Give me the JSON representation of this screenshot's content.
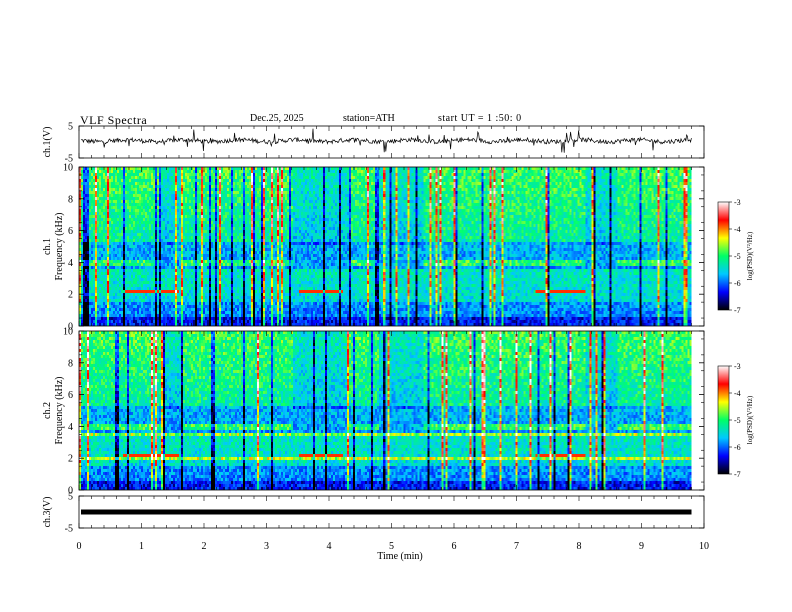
{
  "header": {
    "title": "VLF  Spectra",
    "date": "Dec.25, 2025",
    "station": "station=ATH",
    "start": "start  UT  =   1  :50: 0"
  },
  "chart_data": [
    {
      "type": "line",
      "ylabel": "ch.1(V)",
      "yticks": [
        "5",
        "-5"
      ],
      "ylim": [
        -5,
        5
      ],
      "xlim": [
        0,
        10
      ],
      "baseline": 0.4,
      "color": "#000000"
    },
    {
      "type": "heatmap",
      "ylabel": "ch.1\nFrequency  (kHz)",
      "ylabel_lines": [
        "ch.1",
        "Frequency  (kHz)"
      ],
      "yticks": [
        "0",
        "2",
        "4",
        "6",
        "8",
        "10"
      ],
      "ylim": [
        0,
        10
      ],
      "xlim": [
        0,
        10
      ],
      "data_end_min": 9.8,
      "colorbar": {
        "label": "log(PSD)(V²/Hz)",
        "ticks": [
          "-3",
          "-4",
          "-5",
          "-6",
          "-7"
        ],
        "range": [
          -7,
          -3
        ],
        "colors": [
          "#000000",
          "#0000ff",
          "#00c8ff",
          "#00ff66",
          "#ffff00",
          "#ff0000",
          "#ffffff"
        ]
      }
    },
    {
      "type": "heatmap",
      "ylabel": "ch.2\nFrequency  (kHz)",
      "ylabel_lines": [
        "ch.2",
        "Frequency  (kHz)"
      ],
      "yticks": [
        "0",
        "2",
        "4",
        "6",
        "8",
        "10"
      ],
      "ylim": [
        0,
        10
      ],
      "xlim": [
        0,
        10
      ],
      "data_end_min": 9.8,
      "colorbar": {
        "label": "log(PSD)(V²/Hz)",
        "ticks": [
          "-3",
          "-4",
          "-5",
          "-6",
          "-7"
        ],
        "range": [
          -7,
          -3
        ],
        "colors": [
          "#000000",
          "#0000ff",
          "#00c8ff",
          "#00ff66",
          "#ffff00",
          "#ff0000",
          "#ffffff"
        ]
      }
    },
    {
      "type": "line",
      "ylabel": "ch.3(V)",
      "yticks": [
        "5",
        "-5"
      ],
      "ylim": [
        -5,
        5
      ],
      "xlim": [
        0,
        10
      ],
      "baseline": 0,
      "color": "#000000"
    }
  ],
  "xaxis": {
    "label": "Time  (min)",
    "ticks": [
      "0",
      "1",
      "2",
      "3",
      "4",
      "5",
      "6",
      "7",
      "8",
      "9",
      "10"
    ]
  }
}
